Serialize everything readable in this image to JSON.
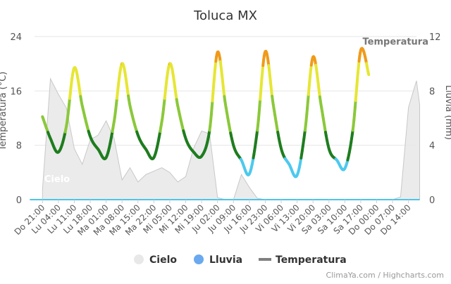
{
  "chart_data": {
    "type": "line",
    "title": "Toluca MX",
    "ylabel_left": "Temperatura (°C)",
    "ylabel_right": "Lluvia (mm)",
    "ylim_left": [
      0,
      24
    ],
    "ylim_right": [
      0,
      12
    ],
    "yticks_left": [
      "0",
      "8",
      "16",
      "24"
    ],
    "yticks_right": [
      "0",
      "4",
      "8",
      "12"
    ],
    "grid": true,
    "categories": [
      "Do 21:00",
      "Lu 04:00",
      "Lu 11:00",
      "Lu 18:00",
      "Ma 01:00",
      "Ma 08:00",
      "Ma 15:00",
      "Ma 22:00",
      "Mi 05:00",
      "Mi 12:00",
      "Mi 19:00",
      "Ju 02:00",
      "Ju 09:00",
      "Ju 16:00",
      "Ju 23:00",
      "Vi 06:00",
      "Vi 13:00",
      "Vi 20:00",
      "Sa 03:00",
      "Sa 10:00",
      "Sa 17:00",
      "Do 00:00",
      "Do 07:00",
      "Do 14:00"
    ],
    "annotations": [
      {
        "text": "Cielo",
        "x_category": "Lu 04:00",
        "y_left": 2.6
      },
      {
        "text": "Temperatura",
        "x_category": "Do 00:00",
        "y_left": 22.8
      }
    ],
    "series": [
      {
        "name": "Cielo",
        "type": "area",
        "axis": "left",
        "color": "#d9d9d9",
        "x": [
          0,
          0.5,
          1,
          1.5,
          2,
          2.5,
          3,
          3.5,
          4,
          4.5,
          5,
          5.5,
          6,
          6.5,
          7,
          7.5,
          8,
          8.5,
          9,
          9.5,
          10,
          10.5,
          11,
          11.5,
          12,
          12.5,
          13,
          13.5,
          14,
          14.5,
          15,
          15.5,
          16,
          16.5,
          17,
          17.5,
          18,
          18.5,
          19,
          19.5,
          20,
          20.5,
          21,
          21.5,
          22,
          22.5,
          23,
          23.5,
          23.7
        ],
        "y": [
          1.5,
          17.8,
          15.5,
          13.5,
          7.5,
          5.2,
          8.8,
          9.5,
          11.6,
          9.0,
          2.9,
          4.7,
          2.6,
          3.7,
          4.2,
          4.7,
          4.0,
          2.6,
          3.4,
          7.6,
          10.1,
          9.7,
          0.3,
          0.0,
          0.0,
          3.7,
          1.8,
          0.2,
          0.0,
          0.0,
          0.0,
          0.0,
          0.0,
          0.0,
          0.0,
          0.0,
          0.0,
          0.0,
          0.0,
          0.0,
          0.0,
          0.0,
          0.0,
          0.0,
          0.0,
          0.4,
          13.6,
          17.5,
          14.0
        ]
      },
      {
        "name": "Lluvia",
        "type": "line",
        "axis": "right",
        "color": "#4fc3e8",
        "x": [
          0,
          23.7
        ],
        "y": [
          0,
          0
        ]
      },
      {
        "name": "Temperatura",
        "type": "line",
        "axis": "left",
        "colorScale": [
          {
            "max": 6,
            "color": "#4dc9ee"
          },
          {
            "max": 10,
            "color": "#1e7d1e"
          },
          {
            "max": 15,
            "color": "#8bc83a"
          },
          {
            "max": 20,
            "color": "#e6e635"
          },
          {
            "max": 100,
            "color": "#f09a1a"
          }
        ],
        "x": [
          0,
          0.5,
          1,
          1.5,
          2,
          2.5,
          3,
          3.5,
          4,
          4.5,
          5,
          5.5,
          6,
          6.5,
          7,
          7.5,
          8,
          8.5,
          9,
          9.5,
          10,
          10.5,
          11,
          11.5,
          12,
          12.5,
          13,
          13.5,
          14,
          14.5,
          15,
          15.5,
          16,
          16.5,
          17,
          17.5,
          18,
          18.5,
          19,
          19.5,
          20,
          20.5,
          21,
          21.5,
          22,
          22.5,
          23,
          23.5,
          23.7
        ],
        "y": [
          12.2,
          9.0,
          7.0,
          10.8,
          19.4,
          13.8,
          9.3,
          7.4,
          6.2,
          11.5,
          20.0,
          13.8,
          9.5,
          7.4,
          6.2,
          11.5,
          20.0,
          13.8,
          9.0,
          7.0,
          6.4,
          10.2,
          21.7,
          14.0,
          8.0,
          5.8,
          3.8,
          10.2,
          21.8,
          14.0,
          7.5,
          5.2,
          3.6,
          10.2,
          21.0,
          14.0,
          7.5,
          5.8,
          4.6,
          10.2,
          22.0,
          18.4,
          null,
          null,
          null,
          null,
          null,
          null,
          null
        ]
      }
    ],
    "legend": {
      "placement": "bottom",
      "items": [
        {
          "label": "Cielo",
          "symbol": "circle",
          "color": "#e8e8e8"
        },
        {
          "label": "Lluvia",
          "symbol": "circle",
          "color": "#6aa9ef"
        },
        {
          "label": "Temperatura",
          "symbol": "line",
          "color": "#7f7f7f"
        }
      ]
    },
    "credits": "ClimaYa.com / Highcharts.com"
  }
}
